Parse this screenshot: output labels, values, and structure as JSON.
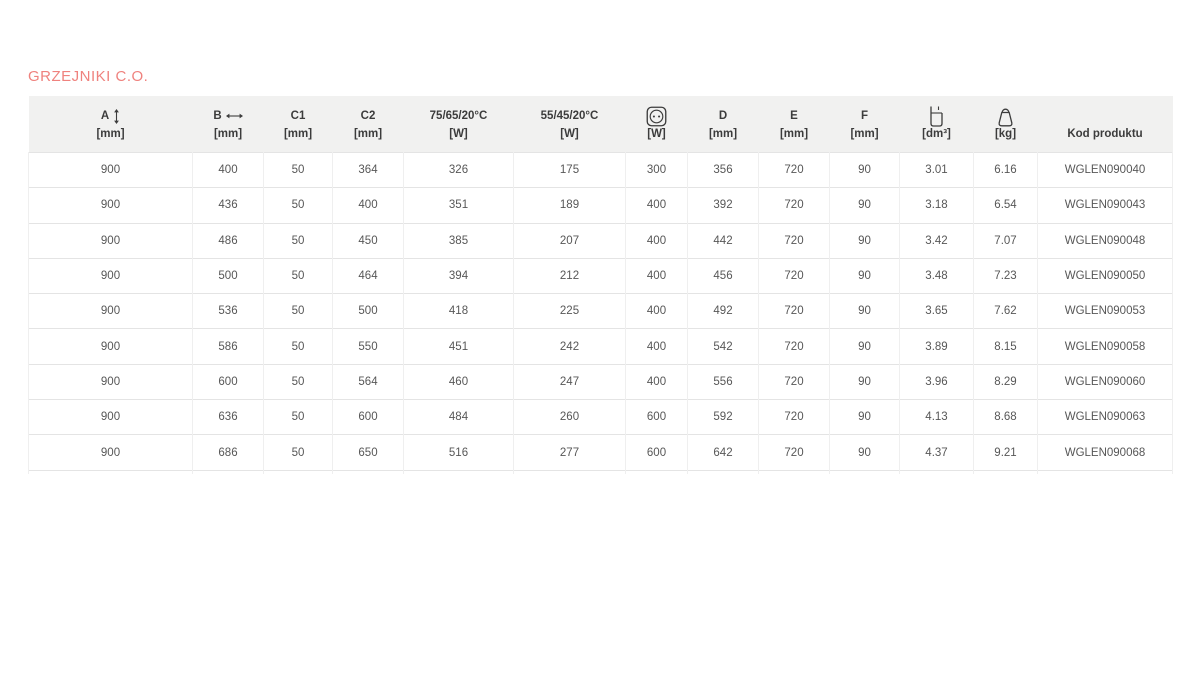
{
  "page": {
    "title": "GRZEJNIKI C.O."
  },
  "colors": {
    "accent": "#ef827e",
    "header_bg": "#f1f1f0",
    "header_text": "#3c3c3c",
    "body_text": "#575757",
    "row_border": "#e4e4e4"
  },
  "table": {
    "columns": [
      {
        "label": "A",
        "icon": "height-arrow-icon",
        "unit": "[mm]"
      },
      {
        "label": "B",
        "icon": "width-arrow-icon",
        "unit": "[mm]"
      },
      {
        "label": "C1",
        "icon": "",
        "unit": "[mm]"
      },
      {
        "label": "C2",
        "icon": "",
        "unit": "[mm]"
      },
      {
        "label": "75/65/20°C",
        "icon": "",
        "unit": "[W]"
      },
      {
        "label": "55/45/20°C",
        "icon": "",
        "unit": "[W]"
      },
      {
        "label": "",
        "icon": "power-socket-icon",
        "unit": "[W]"
      },
      {
        "label": "D",
        "icon": "",
        "unit": "[mm]"
      },
      {
        "label": "E",
        "icon": "",
        "unit": "[mm]"
      },
      {
        "label": "F",
        "icon": "",
        "unit": "[mm]"
      },
      {
        "label": "",
        "icon": "water-volume-icon",
        "unit": "[dm³]"
      },
      {
        "label": "",
        "icon": "weight-bag-icon",
        "unit": "[kg]"
      },
      {
        "label": "Kod produktu",
        "icon": "",
        "unit": ""
      }
    ],
    "rows": [
      [
        "900",
        "400",
        "50",
        "364",
        "326",
        "175",
        "300",
        "356",
        "720",
        "90",
        "3.01",
        "6.16",
        "WGLEN090040"
      ],
      [
        "900",
        "436",
        "50",
        "400",
        "351",
        "189",
        "400",
        "392",
        "720",
        "90",
        "3.18",
        "6.54",
        "WGLEN090043"
      ],
      [
        "900",
        "486",
        "50",
        "450",
        "385",
        "207",
        "400",
        "442",
        "720",
        "90",
        "3.42",
        "7.07",
        "WGLEN090048"
      ],
      [
        "900",
        "500",
        "50",
        "464",
        "394",
        "212",
        "400",
        "456",
        "720",
        "90",
        "3.48",
        "7.23",
        "WGLEN090050"
      ],
      [
        "900",
        "536",
        "50",
        "500",
        "418",
        "225",
        "400",
        "492",
        "720",
        "90",
        "3.65",
        "7.62",
        "WGLEN090053"
      ],
      [
        "900",
        "586",
        "50",
        "550",
        "451",
        "242",
        "400",
        "542",
        "720",
        "90",
        "3.89",
        "8.15",
        "WGLEN090058"
      ],
      [
        "900",
        "600",
        "50",
        "564",
        "460",
        "247",
        "400",
        "556",
        "720",
        "90",
        "3.96",
        "8.29",
        "WGLEN090060"
      ],
      [
        "900",
        "636",
        "50",
        "600",
        "484",
        "260",
        "600",
        "592",
        "720",
        "90",
        "4.13",
        "8.68",
        "WGLEN090063"
      ],
      [
        "900",
        "686",
        "50",
        "650",
        "516",
        "277",
        "600",
        "642",
        "720",
        "90",
        "4.37",
        "9.21",
        "WGLEN090068"
      ]
    ]
  }
}
